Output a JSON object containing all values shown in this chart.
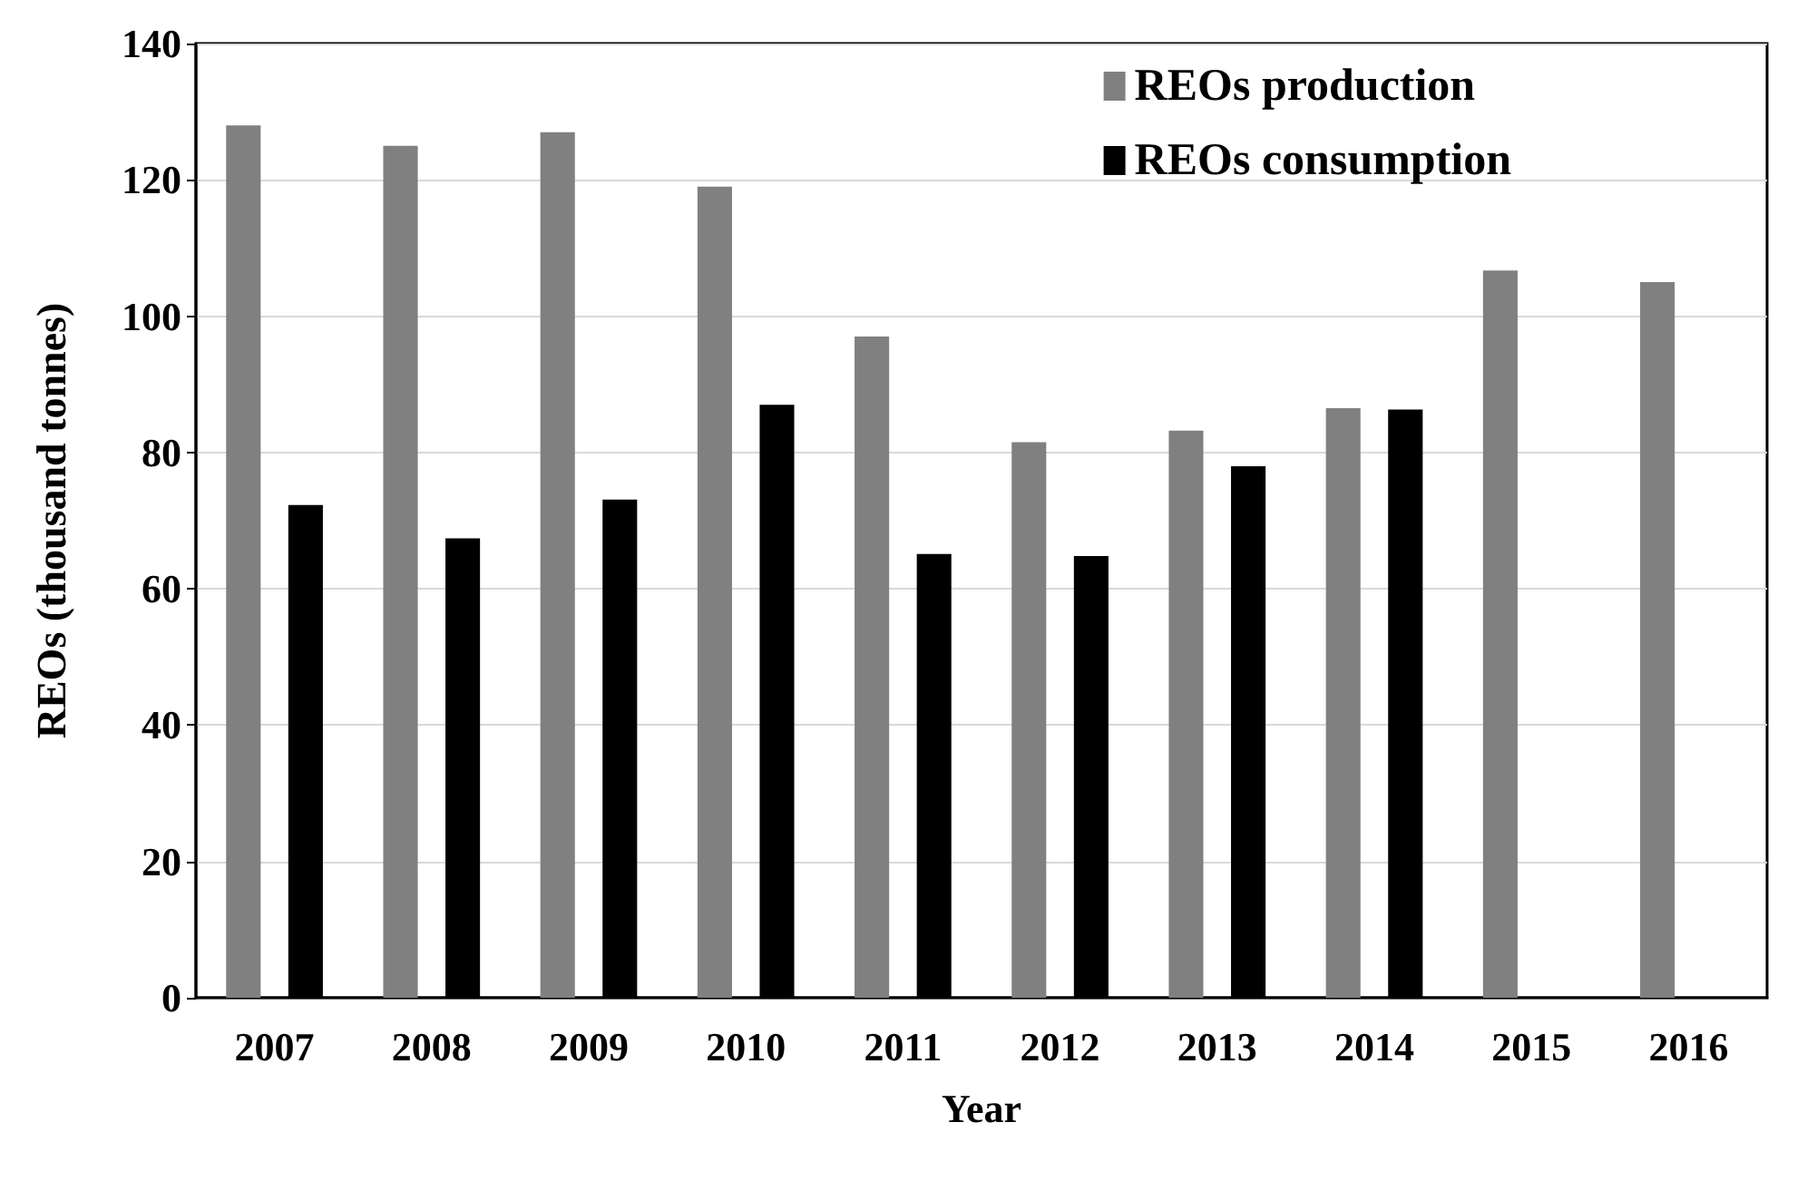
{
  "chart_data": {
    "type": "bar",
    "xlabel": "Year",
    "ylabel": "REOs (thousand tonnes)",
    "categories": [
      "2007",
      "2008",
      "2009",
      "2010",
      "2011",
      "2012",
      "2013",
      "2014",
      "2015",
      "2016"
    ],
    "series": [
      {
        "name": "REOs production",
        "color": "#808080",
        "values": [
          128,
          125,
          127,
          119,
          97,
          81.5,
          83.2,
          86.5,
          106.7,
          105
        ]
      },
      {
        "name": "REOs consumption",
        "color": "#000000",
        "values": [
          72.3,
          67.4,
          73.1,
          87,
          65.1,
          64.8,
          78,
          86.3,
          null,
          null
        ]
      }
    ],
    "ylim": [
      0,
      140
    ],
    "yticks": [
      0,
      20,
      40,
      60,
      80,
      100,
      120,
      140
    ],
    "grid": "y",
    "legend": "top right"
  }
}
